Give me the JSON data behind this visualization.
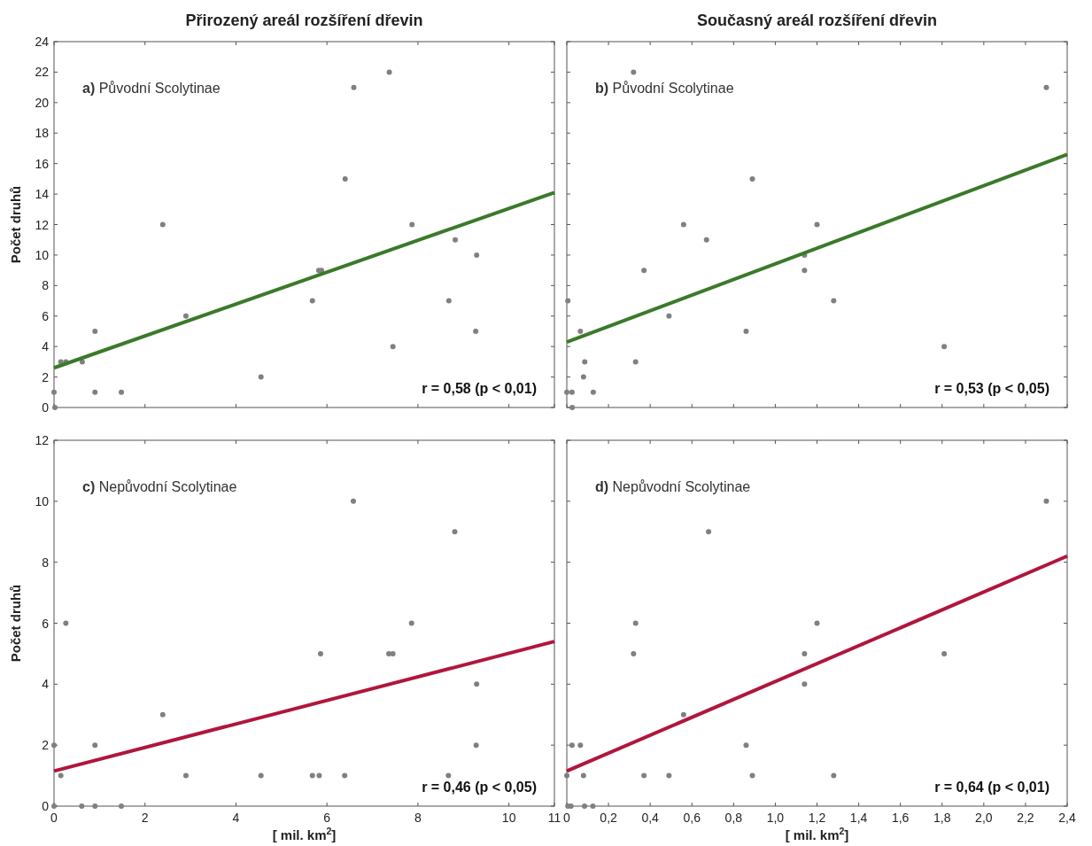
{
  "chart_data": [
    {
      "type": "scatter",
      "title": "Přirozený areál rozšíření dřevin",
      "ylabel": "Počet druhů",
      "annotations": [
        "a) Původní Scolytinae",
        "r = 0,58 (p < 0,01)"
      ],
      "xlim": [
        0,
        11
      ],
      "xticks": [
        0,
        2,
        4,
        6,
        8,
        10,
        11
      ],
      "ylim": [
        0,
        24
      ],
      "yticks": [
        0,
        2,
        4,
        6,
        8,
        10,
        12,
        14,
        16,
        18,
        20,
        22,
        24
      ],
      "tick_labels": "y",
      "grid": false,
      "series": [
        {
          "marker": "circle",
          "color": "#808080",
          "x": [
            0.02,
            0,
            0.15,
            0.26,
            0.62,
            0.9,
            0.9,
            1.48,
            2.39,
            2.9,
            4.55,
            5.68,
            5.82,
            5.88,
            6.4,
            6.59,
            7.37,
            7.45,
            7.87,
            8.68,
            8.82,
            9.27,
            9.29
          ],
          "values": [
            0,
            1,
            3,
            3,
            3,
            5,
            1,
            1,
            12,
            6,
            2,
            7,
            9,
            9,
            15,
            21,
            22,
            4,
            12,
            7,
            11,
            5,
            10
          ]
        },
        {
          "type": "line",
          "marker": "none",
          "color": "#3a7a2a",
          "x": [
            0,
            11
          ],
          "values": [
            2.6,
            14.1
          ]
        }
      ]
    },
    {
      "type": "scatter",
      "title": "Současný areál rozšíření dřevin",
      "annotations": [
        "b) Původní Scolytinae",
        "r = 0,53 (p < 0,05)"
      ],
      "xlim": [
        0,
        2.4
      ],
      "xticks": [
        0,
        0.2,
        0.4,
        0.6,
        0.8,
        1,
        1.2,
        1.4,
        1.6,
        1.8,
        2,
        2.2,
        2.4
      ],
      "ylim": [
        0,
        24
      ],
      "yticks": [
        0,
        2,
        4,
        6,
        8,
        10,
        12,
        14,
        16,
        18,
        20,
        22,
        24
      ],
      "tick_labels": false,
      "grid": false,
      "series": [
        {
          "marker": "circle",
          "color": "#808080",
          "x": [
            0.005,
            0,
            0.025,
            0.026,
            0.065,
            0.086,
            0.08,
            0.127,
            0.32,
            0.33,
            0.37,
            0.49,
            0.56,
            0.67,
            0.86,
            0.89,
            1.14,
            1.14,
            1.2,
            1.28,
            1.81,
            2.3
          ],
          "values": [
            7,
            1,
            1,
            0,
            5,
            3,
            2,
            1,
            22,
            3,
            9,
            6,
            12,
            11,
            5,
            15,
            10,
            9,
            12,
            7,
            4,
            21
          ]
        },
        {
          "type": "line",
          "marker": "none",
          "color": "#3a7a2a",
          "x": [
            0,
            2.4
          ],
          "values": [
            4.3,
            16.6
          ]
        }
      ]
    },
    {
      "type": "scatter",
      "xlabel": "[ mil. km$^{2}$]",
      "ylabel": "Počet druhů",
      "annotations": [
        "c) Nepůvodní Scolytinae",
        "r = 0,46 (p < 0,05)"
      ],
      "xlim": [
        0,
        11
      ],
      "xticks": [
        0,
        2,
        4,
        6,
        8,
        10,
        11
      ],
      "ylim": [
        0,
        12
      ],
      "yticks": [
        0,
        2,
        4,
        6,
        8,
        10,
        12
      ],
      "grid": false,
      "series": [
        {
          "marker": "circle",
          "color": "#808080",
          "x": [
            0,
            0,
            0.15,
            0.26,
            0.61,
            0.9,
            0.9,
            1.48,
            2.39,
            2.9,
            4.55,
            5.68,
            5.83,
            5.86,
            6.39,
            6.58,
            7.36,
            7.45,
            7.86,
            8.67,
            8.81,
            9.28,
            9.29
          ],
          "values": [
            0,
            2,
            1,
            6,
            0,
            0,
            2,
            0,
            3,
            1,
            1,
            1,
            1,
            5,
            1,
            10,
            5,
            5,
            6,
            1,
            9,
            2,
            4
          ]
        },
        {
          "type": "line",
          "marker": "none",
          "color": "#b0163c",
          "x": [
            0,
            11
          ],
          "values": [
            1.15,
            5.4
          ]
        }
      ]
    },
    {
      "type": "scatter",
      "xlabel": "[ mil. km$^{2}$]",
      "annotations": [
        "d) Nepůvodní Scolytinae",
        "r = 0,64 (p < 0,01)"
      ],
      "xlim": [
        0,
        2.4
      ],
      "xticks": [
        0,
        {
          "value": 0.2,
          "label": "0,2"
        },
        {
          "value": 0.4,
          "label": "0,4"
        },
        {
          "value": 0.6,
          "label": "0,6"
        },
        {
          "value": 0.8,
          "label": "0,8"
        },
        {
          "value": 1,
          "label": "1,0"
        },
        {
          "value": 1.2,
          "label": "1,2"
        },
        {
          "value": 1.4,
          "label": "1,4"
        },
        {
          "value": 1.6,
          "label": "1,6"
        },
        {
          "value": 1.8,
          "label": "1,8"
        },
        {
          "value": 2,
          "label": "2,0"
        },
        {
          "value": 2.2,
          "label": "2,2"
        },
        {
          "value": 2.4,
          "label": "2,4"
        }
      ],
      "ylim": [
        0,
        12
      ],
      "yticks": [
        0,
        2,
        4,
        6,
        8,
        10,
        12
      ],
      "tick_labels": "x",
      "grid": false,
      "series": [
        {
          "marker": "circle",
          "color": "#808080",
          "x": [
            0,
            0.005,
            0.02,
            0.025,
            0.065,
            0.08,
            0.085,
            0.125,
            0.32,
            0.33,
            0.37,
            0.49,
            0.56,
            0.68,
            0.86,
            0.89,
            1.14,
            1.14,
            1.2,
            1.28,
            1.81,
            2.3
          ],
          "values": [
            1,
            0,
            0,
            2,
            2,
            1,
            0,
            0,
            5,
            6,
            1,
            1,
            3,
            9,
            2,
            1,
            5,
            4,
            6,
            1,
            5,
            10
          ]
        },
        {
          "type": "line",
          "marker": "none",
          "color": "#b0163c",
          "x": [
            0,
            2.4
          ],
          "values": [
            1.15,
            8.2
          ]
        }
      ]
    }
  ]
}
